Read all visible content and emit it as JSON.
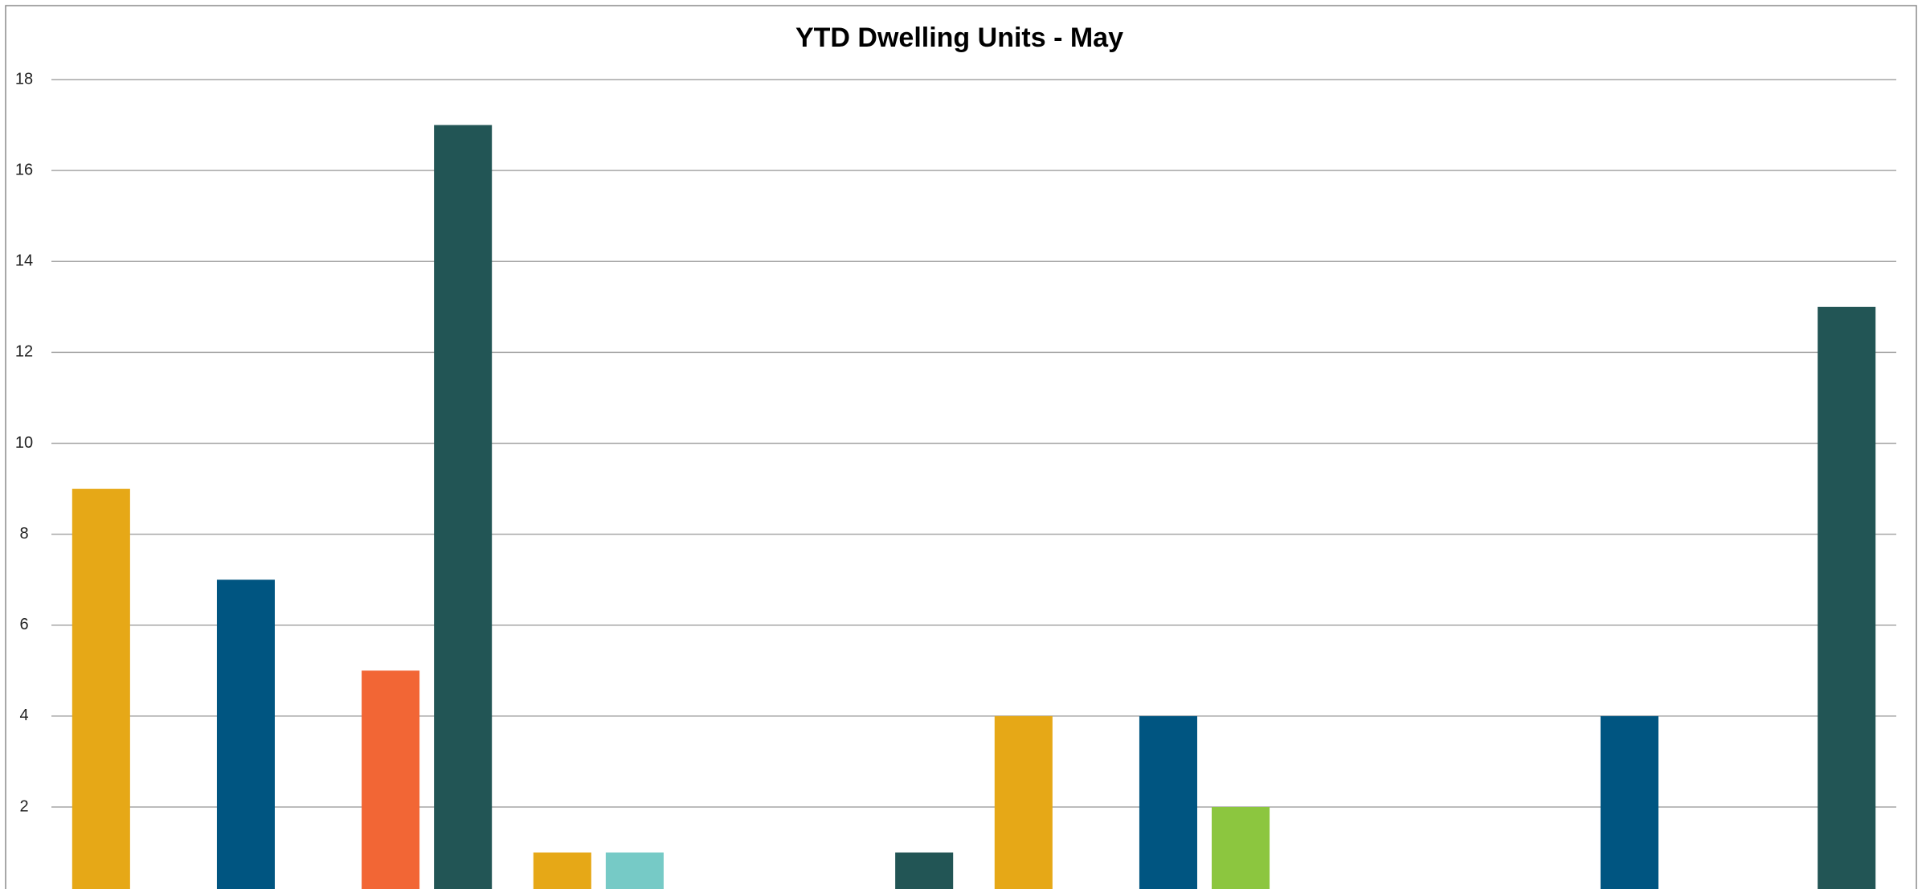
{
  "chart_data": {
    "type": "bar",
    "title": "YTD Dwelling Units - May",
    "categories": [
      null,
      null,
      null,
      null
    ],
    "series": [
      {
        "color": "#e6a817",
        "values": [
          9,
          1,
          4,
          0
        ]
      },
      {
        "color": "#76cac6",
        "values": [
          0,
          1,
          0,
          0
        ]
      },
      {
        "color": "#005581",
        "values": [
          7,
          0,
          4,
          4
        ]
      },
      {
        "color": "#8cc63f",
        "values": [
          0,
          0,
          2,
          0
        ]
      },
      {
        "color": "#f26635",
        "values": [
          5,
          0,
          0,
          0
        ]
      },
      {
        "color": "#225555",
        "values": [
          17,
          1,
          0,
          13
        ]
      }
    ],
    "ylim": [
      0,
      18
    ],
    "yticks": [
      2,
      4,
      6,
      8,
      10,
      12,
      14,
      16,
      18
    ],
    "grid": true
  }
}
